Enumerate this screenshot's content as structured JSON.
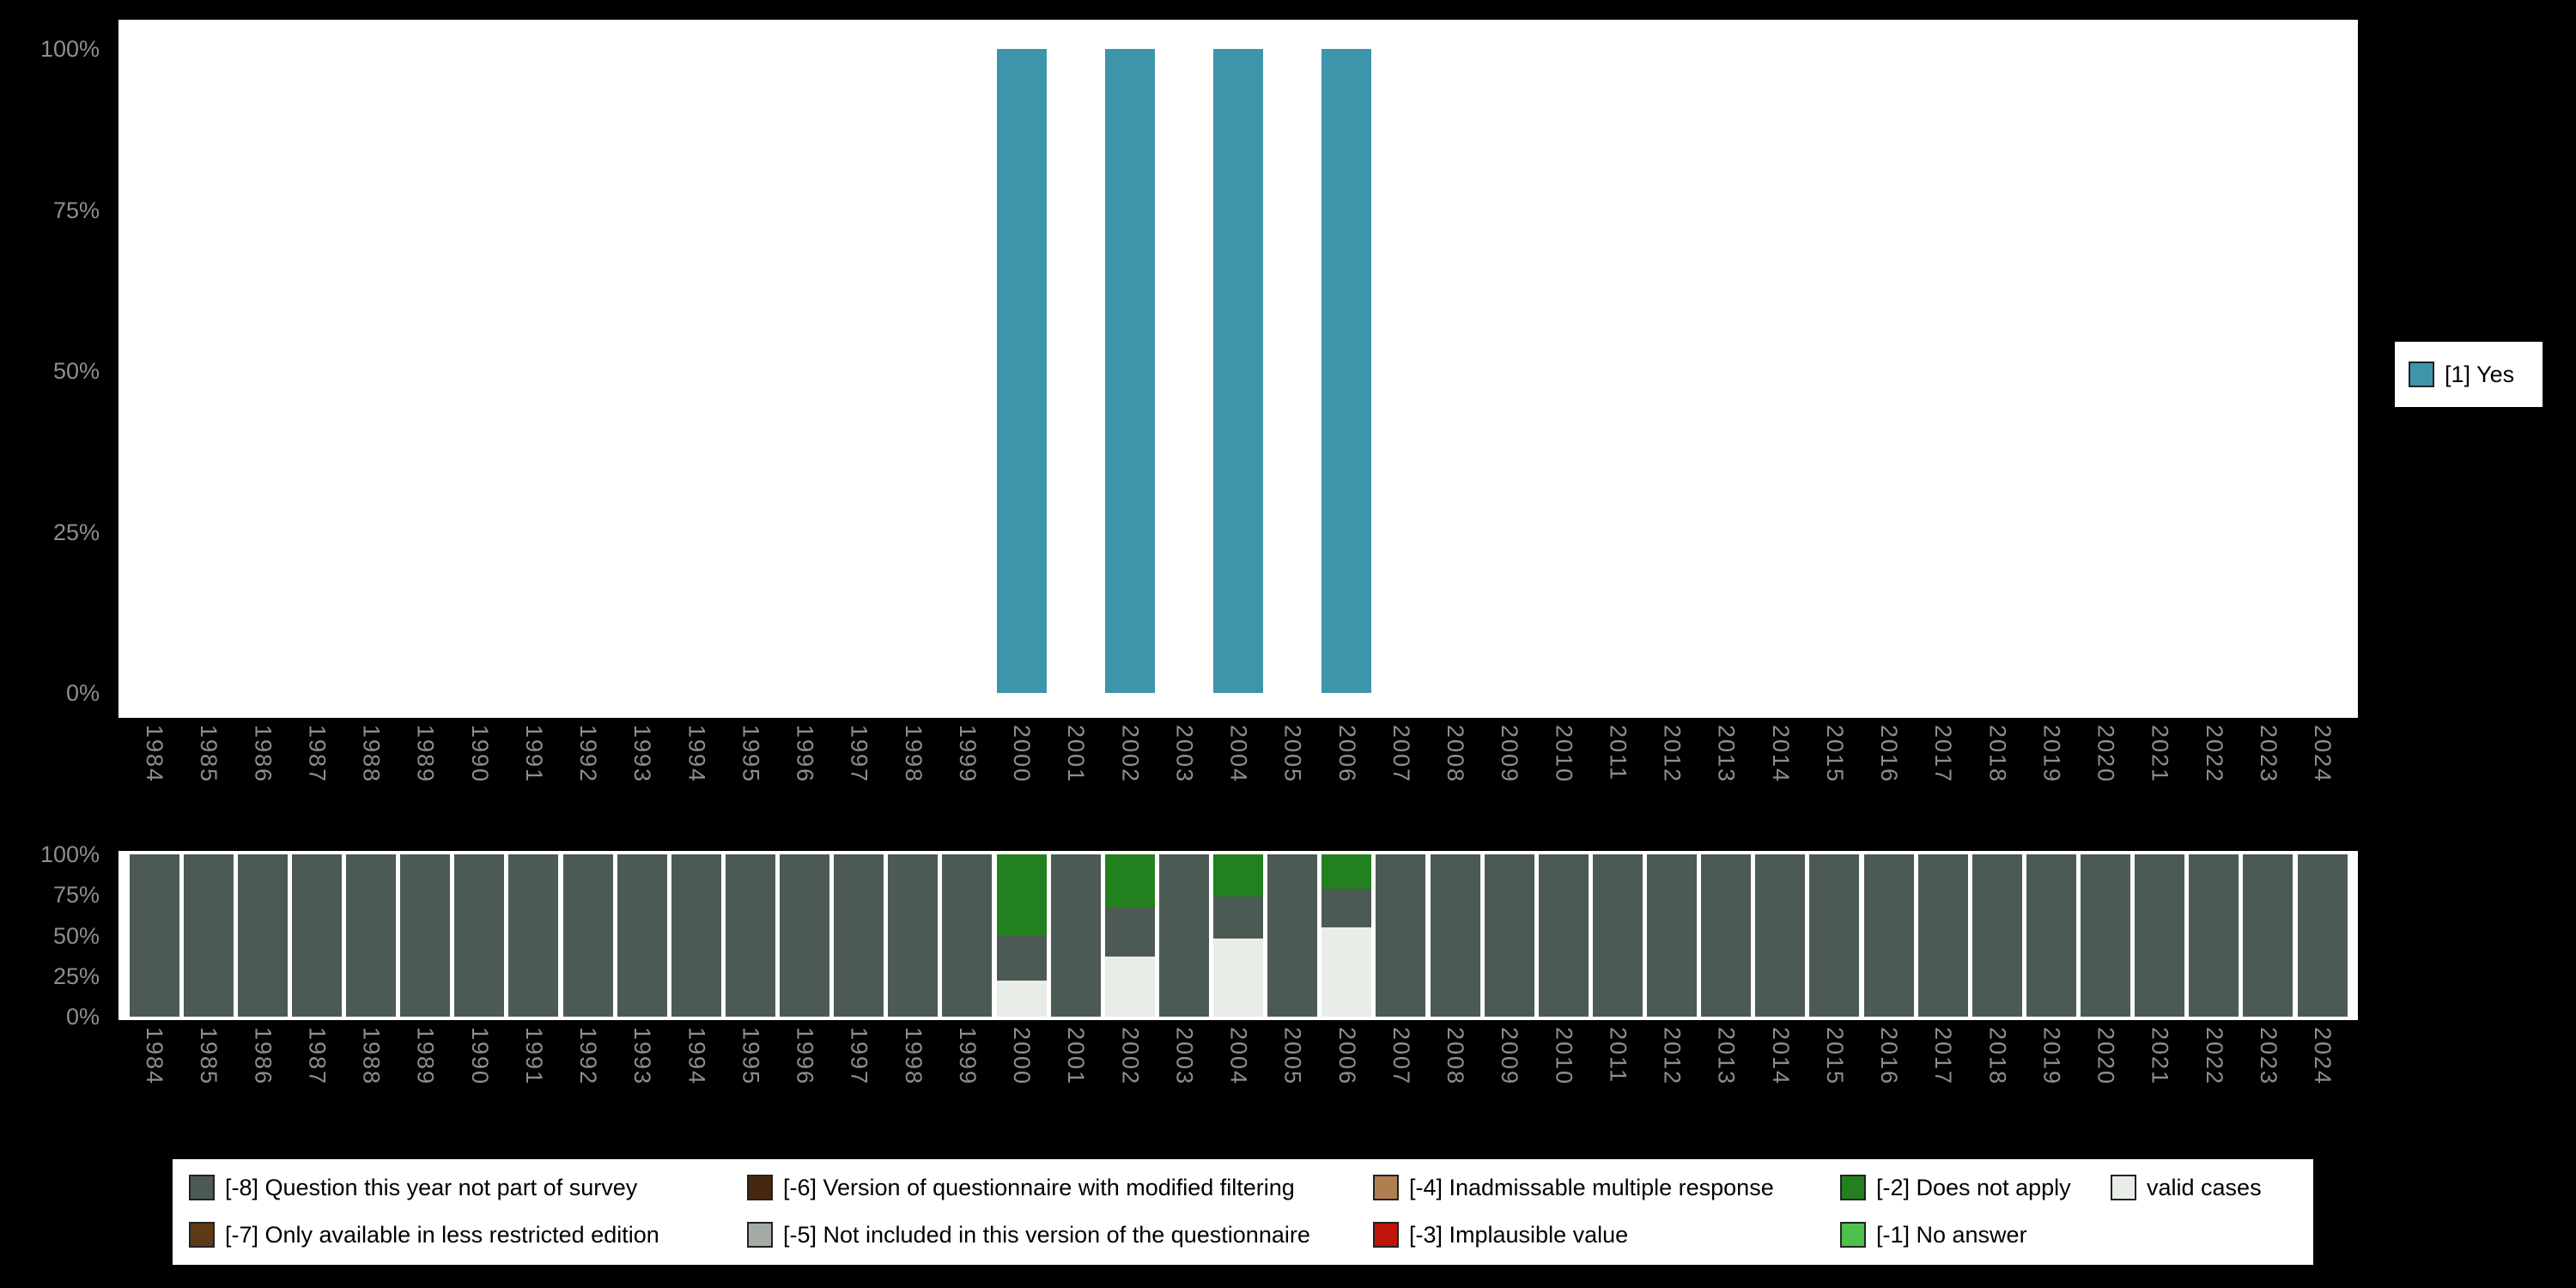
{
  "page": {
    "background": "#000000"
  },
  "chart_data": [
    {
      "id": "availability-by-year",
      "type": "bar",
      "title": "",
      "xlabel": "",
      "ylabel": "",
      "ylim": [
        0,
        100
      ],
      "grid": false,
      "legend_position": "right",
      "x": [
        "1984",
        "1985",
        "1986",
        "1987",
        "1988",
        "1989",
        "1990",
        "1991",
        "1992",
        "1993",
        "1994",
        "1995",
        "1996",
        "1997",
        "1998",
        "1999",
        "2000",
        "2001",
        "2002",
        "2003",
        "2004",
        "2005",
        "2006",
        "2007",
        "2008",
        "2009",
        "2010",
        "2011",
        "2012",
        "2013",
        "2014",
        "2015",
        "2016",
        "2017",
        "2018",
        "2019",
        "2020",
        "2021",
        "2022",
        "2023",
        "2024"
      ],
      "yticks": [
        {
          "label": "0%",
          "value": 0
        },
        {
          "label": "25%",
          "value": 25
        },
        {
          "label": "50%",
          "value": 50
        },
        {
          "label": "75%",
          "value": 75
        },
        {
          "label": "100%",
          "value": 100
        }
      ],
      "series": [
        {
          "name": "[1] Yes",
          "color": "#3d95ac",
          "values": [
            null,
            null,
            null,
            null,
            null,
            null,
            null,
            null,
            null,
            null,
            null,
            null,
            null,
            null,
            null,
            null,
            100,
            null,
            100,
            null,
            100,
            null,
            100,
            null,
            null,
            null,
            null,
            null,
            null,
            null,
            null,
            null,
            null,
            null,
            null,
            null,
            null,
            null,
            null,
            null,
            null
          ]
        }
      ],
      "legend": {
        "entries": [
          {
            "label": "[1] Yes",
            "color": "#3d95ac"
          }
        ]
      }
    },
    {
      "id": "missing-values-by-year",
      "type": "stacked-bar",
      "title": "",
      "xlabel": "",
      "ylabel": "",
      "ylim": [
        0,
        100
      ],
      "grid": false,
      "stack_order": "bottom-to-top",
      "x": [
        "1984",
        "1985",
        "1986",
        "1987",
        "1988",
        "1989",
        "1990",
        "1991",
        "1992",
        "1993",
        "1994",
        "1995",
        "1996",
        "1997",
        "1998",
        "1999",
        "2000",
        "2001",
        "2002",
        "2003",
        "2004",
        "2005",
        "2006",
        "2007",
        "2008",
        "2009",
        "2010",
        "2011",
        "2012",
        "2013",
        "2014",
        "2015",
        "2016",
        "2017",
        "2018",
        "2019",
        "2020",
        "2021",
        "2022",
        "2023",
        "2024"
      ],
      "yticks": [
        {
          "label": "0%",
          "value": 0
        },
        {
          "label": "25%",
          "value": 25
        },
        {
          "label": "50%",
          "value": 50
        },
        {
          "label": "75%",
          "value": 75
        },
        {
          "label": "100%",
          "value": 100
        }
      ],
      "series": [
        {
          "name": "valid cases",
          "color": "#e9ede7",
          "values": [
            0,
            0,
            0,
            0,
            0,
            0,
            0,
            0,
            0,
            0,
            0,
            0,
            0,
            0,
            0,
            0,
            22,
            0,
            37,
            0,
            48,
            0,
            55,
            0,
            0,
            0,
            0,
            0,
            0,
            0,
            0,
            0,
            0,
            0,
            0,
            0,
            0,
            0,
            0,
            0,
            0
          ]
        },
        {
          "name": "[-8] Question this year not part of survey",
          "color": "#4c5a54",
          "values": [
            100,
            100,
            100,
            100,
            100,
            100,
            100,
            100,
            100,
            100,
            100,
            100,
            100,
            100,
            100,
            100,
            28,
            100,
            30,
            100,
            26,
            100,
            24,
            100,
            100,
            100,
            100,
            100,
            100,
            100,
            100,
            100,
            100,
            100,
            100,
            100,
            100,
            100,
            100,
            100,
            100
          ]
        },
        {
          "name": "[-2] Does not apply",
          "color": "#23801f",
          "values": [
            0,
            0,
            0,
            0,
            0,
            0,
            0,
            0,
            0,
            0,
            0,
            0,
            0,
            0,
            0,
            0,
            50,
            0,
            33,
            0,
            26,
            0,
            21,
            0,
            0,
            0,
            0,
            0,
            0,
            0,
            0,
            0,
            0,
            0,
            0,
            0,
            0,
            0,
            0,
            0,
            0
          ]
        }
      ]
    }
  ],
  "bottom_legend": {
    "columns": [
      {
        "items": [
          {
            "label": "[-8] Question this year not part of survey",
            "color": "#4c5a54"
          },
          {
            "label": "[-7] Only available in less restricted edition",
            "color": "#5e3a17"
          }
        ]
      },
      {
        "items": [
          {
            "label": "[-6] Version of questionnaire with modified filtering",
            "color": "#46280c"
          },
          {
            "label": "[-5] Not included in this version of the questionnaire",
            "color": "#a2aba4"
          }
        ]
      },
      {
        "items": [
          {
            "label": "[-4] Inadmissable multiple response",
            "color": "#b07f50"
          },
          {
            "label": "[-3] Implausible value",
            "color": "#c01409"
          }
        ]
      },
      {
        "items": [
          {
            "label": "[-2] Does not apply",
            "color": "#23801f"
          },
          {
            "label": "[-1] No answer",
            "color": "#4cc24c"
          }
        ]
      },
      {
        "items": [
          {
            "label": "valid cases",
            "color": "#e9ede7"
          }
        ]
      }
    ]
  }
}
